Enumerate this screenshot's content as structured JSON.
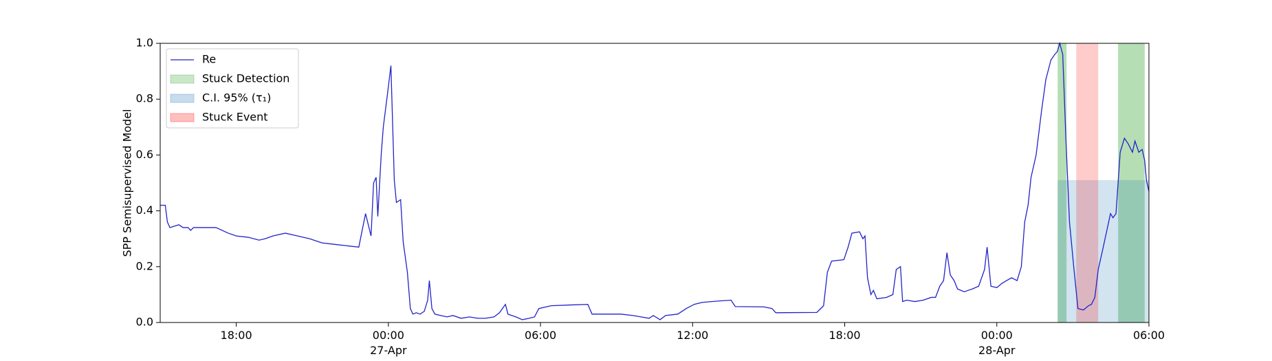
{
  "chart_data": {
    "type": "line",
    "ylabel": "SPP Semisupervised Model",
    "legend": "upper left",
    "xlim": [
      "1900-04-26T15:00",
      "1900-04-28T06:00"
    ],
    "xticks": [
      {
        "value": "1900-04-26T18:00",
        "label": "18:00"
      },
      {
        "value": "1900-04-27T00:00",
        "label": "00:00\n27-Apr\n1900"
      },
      {
        "value": "1900-04-27T06:00",
        "label": "06:00"
      },
      {
        "value": "1900-04-27T12:00",
        "label": "12:00"
      },
      {
        "value": "1900-04-27T18:00",
        "label": "18:00"
      },
      {
        "value": "1900-04-28T00:00",
        "label": "00:00\n28-Apr"
      },
      {
        "value": "1900-04-28T06:00",
        "label": "06:00"
      }
    ],
    "ylim": [
      0,
      1
    ],
    "yticks": [
      {
        "value": 0,
        "label": "0.0"
      },
      0.2,
      0.4,
      0.6,
      0.8,
      {
        "value": 1,
        "label": "1.0"
      }
    ],
    "x": [
      "1900-04-26T15:00",
      "1900-04-26T15:12",
      "1900-04-26T15:17",
      "1900-04-26T15:23",
      "1900-04-26T15:44",
      "1900-04-26T15:54",
      "1900-04-26T16:06",
      "1900-04-26T16:12",
      "1900-04-26T16:19",
      "1900-04-26T16:43",
      "1900-04-26T17:12",
      "1900-04-26T17:41",
      "1900-04-26T18:00",
      "1900-04-26T18:29",
      "1900-04-26T18:54",
      "1900-04-26T19:08",
      "1900-04-26T19:27",
      "1900-04-26T19:56",
      "1900-04-26T20:25",
      "1900-04-26T20:54",
      "1900-04-26T21:23",
      "1900-04-26T21:52",
      "1900-04-26T22:21",
      "1900-04-26T22:50",
      "1900-04-26T23:06",
      "1900-04-26T23:19",
      "1900-04-26T23:25",
      "1900-04-26T23:31",
      "1900-04-26T23:35",
      "1900-04-26T23:43",
      "1900-04-26T23:48",
      "1900-04-26T23:58",
      "1900-04-27T00:06",
      "1900-04-27T00:14",
      "1900-04-27T00:19",
      "1900-04-27T00:29",
      "1900-04-27T00:35",
      "1900-04-27T00:45",
      "1900-04-27T00:52",
      "1900-04-27T00:58",
      "1900-04-27T01:06",
      "1900-04-27T01:15",
      "1900-04-27T01:25",
      "1900-04-27T01:33",
      "1900-04-27T01:37",
      "1900-04-27T01:43",
      "1900-04-27T01:50",
      "1900-04-27T02:04",
      "1900-04-27T02:19",
      "1900-04-27T02:33",
      "1900-04-27T02:52",
      "1900-04-27T03:12",
      "1900-04-27T03:31",
      "1900-04-27T03:50",
      "1900-04-27T04:10",
      "1900-04-27T04:23",
      "1900-04-27T04:37",
      "1900-04-27T04:43",
      "1900-04-27T05:02",
      "1900-04-27T05:17",
      "1900-04-27T05:33",
      "1900-04-27T05:46",
      "1900-04-27T05:56",
      "1900-04-27T06:25",
      "1900-04-27T07:14",
      "1900-04-27T07:52",
      "1900-04-27T08:02",
      "1900-04-27T09:10",
      "1900-04-27T09:39",
      "1900-04-27T09:58",
      "1900-04-27T10:17",
      "1900-04-27T10:27",
      "1900-04-27T10:43",
      "1900-04-27T10:56",
      "1900-04-27T11:25",
      "1900-04-27T11:45",
      "1900-04-27T12:04",
      "1900-04-27T12:23",
      "1900-04-27T13:02",
      "1900-04-27T13:31",
      "1900-04-27T13:41",
      "1900-04-27T14:48",
      "1900-04-27T15:08",
      "1900-04-27T15:17",
      "1900-04-27T16:54",
      "1900-04-27T17:10",
      "1900-04-27T17:19",
      "1900-04-27T17:29",
      "1900-04-27T17:58",
      "1900-04-27T18:08",
      "1900-04-27T18:17",
      "1900-04-27T18:35",
      "1900-04-27T18:43",
      "1900-04-27T18:48",
      "1900-04-27T18:54",
      "1900-04-27T19:02",
      "1900-04-27T19:08",
      "1900-04-27T19:16",
      "1900-04-27T19:39",
      "1900-04-27T19:54",
      "1900-04-27T20:02",
      "1900-04-27T20:12",
      "1900-04-27T20:17",
      "1900-04-27T20:27",
      "1900-04-27T20:46",
      "1900-04-27T21:06",
      "1900-04-27T21:25",
      "1900-04-27T21:35",
      "1900-04-27T21:45",
      "1900-04-27T21:54",
      "1900-04-27T22:02",
      "1900-04-27T22:10",
      "1900-04-27T22:19",
      "1900-04-27T22:27",
      "1900-04-27T22:43",
      "1900-04-27T22:52",
      "1900-04-27T23:02",
      "1900-04-27T23:17",
      "1900-04-27T23:31",
      "1900-04-27T23:37",
      "1900-04-27T23:46",
      "1900-04-28T00:00",
      "1900-04-28T00:12",
      "1900-04-28T00:23",
      "1900-04-28T00:35",
      "1900-04-28T00:48",
      "1900-04-28T00:58",
      "1900-04-28T01:06",
      "1900-04-28T01:14",
      "1900-04-28T01:21",
      "1900-04-28T01:33",
      "1900-04-28T01:46",
      "1900-04-28T01:56",
      "1900-04-28T02:08",
      "1900-04-28T02:17",
      "1900-04-28T02:23",
      "1900-04-28T02:29",
      "1900-04-28T02:36",
      "1900-04-28T02:44",
      "1900-04-28T02:52",
      "1900-04-28T03:02",
      "1900-04-28T03:12",
      "1900-04-28T03:25",
      "1900-04-28T03:37",
      "1900-04-28T03:44",
      "1900-04-28T03:52",
      "1900-04-28T04:00",
      "1900-04-28T04:09",
      "1900-04-28T04:19",
      "1900-04-28T04:29",
      "1900-04-28T04:35",
      "1900-04-28T04:42",
      "1900-04-28T04:52",
      "1900-04-28T05:02",
      "1900-04-28T05:11",
      "1900-04-28T05:21",
      "1900-04-28T05:27",
      "1900-04-28T05:36",
      "1900-04-28T05:44",
      "1900-04-28T05:50",
      "1900-04-28T05:54",
      "1900-04-28T06:00"
    ],
    "series": [
      {
        "name": "Re",
        "color": "#2121c8",
        "values": [
          0.42,
          0.42,
          0.36,
          0.34,
          0.35,
          0.34,
          0.34,
          0.33,
          0.34,
          0.34,
          0.34,
          0.32,
          0.31,
          0.305,
          0.295,
          0.3,
          0.31,
          0.32,
          0.31,
          0.3,
          0.285,
          0.28,
          0.275,
          0.27,
          0.39,
          0.31,
          0.5,
          0.52,
          0.38,
          0.6,
          0.7,
          0.82,
          0.92,
          0.51,
          0.43,
          0.44,
          0.29,
          0.18,
          0.05,
          0.03,
          0.035,
          0.03,
          0.04,
          0.08,
          0.15,
          0.05,
          0.03,
          0.025,
          0.02,
          0.025,
          0.015,
          0.02,
          0.015,
          0.015,
          0.02,
          0.035,
          0.065,
          0.03,
          0.02,
          0.01,
          0.015,
          0.02,
          0.05,
          0.06,
          0.063,
          0.065,
          0.03,
          0.03,
          0.025,
          0.02,
          0.015,
          0.025,
          0.01,
          0.025,
          0.03,
          0.05,
          0.065,
          0.072,
          0.077,
          0.08,
          0.057,
          0.056,
          0.05,
          0.035,
          0.036,
          0.06,
          0.18,
          0.22,
          0.225,
          0.27,
          0.32,
          0.325,
          0.3,
          0.31,
          0.16,
          0.1,
          0.115,
          0.085,
          0.09,
          0.1,
          0.19,
          0.2,
          0.075,
          0.08,
          0.075,
          0.08,
          0.09,
          0.09,
          0.13,
          0.15,
          0.25,
          0.17,
          0.15,
          0.12,
          0.11,
          0.115,
          0.12,
          0.13,
          0.19,
          0.27,
          0.13,
          0.125,
          0.14,
          0.15,
          0.16,
          0.15,
          0.2,
          0.36,
          0.42,
          0.52,
          0.6,
          0.76,
          0.87,
          0.94,
          0.96,
          0.97,
          1.0,
          0.96,
          0.64,
          0.36,
          0.2,
          0.05,
          0.045,
          0.06,
          0.065,
          0.09,
          0.19,
          0.25,
          0.32,
          0.39,
          0.375,
          0.39,
          0.61,
          0.66,
          0.64,
          0.61,
          0.65,
          0.61,
          0.62,
          0.58,
          0.51,
          0.47
        ]
      }
    ],
    "spans": [
      {
        "name": "Stuck Detection",
        "color": "#2ca02c",
        "ranges": [
          [
            "1900-04-28T02:24",
            "1900-04-28T02:45"
          ],
          [
            "1900-04-28T04:47",
            "1900-04-28T05:50"
          ]
        ]
      },
      {
        "name": "C.I. 95% (τ₁)",
        "color": "#1f77b4",
        "top": 0.51,
        "ranges": [
          [
            "1900-04-28T02:24",
            "1900-04-28T06:00"
          ]
        ]
      },
      {
        "name": "Stuck Event",
        "color": "#ff0000",
        "ranges": [
          [
            "1900-04-28T03:08",
            "1900-04-28T04:00"
          ]
        ]
      }
    ]
  }
}
